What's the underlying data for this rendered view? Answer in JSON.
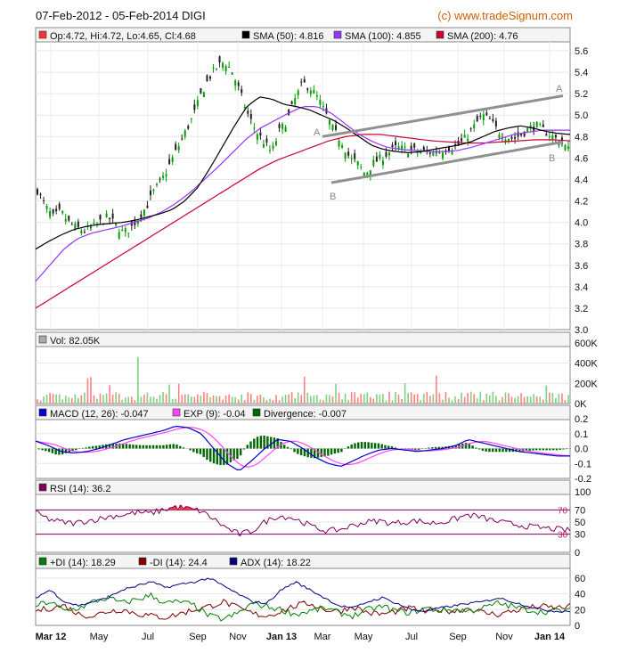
{
  "header": {
    "title": "07-Feb-2012 - 05-Feb-2014 DIGI",
    "brand": "(c) www.tradeSignum.com"
  },
  "colors": {
    "price_up": "#00a000",
    "price_down": "#202020",
    "sma50": "#000000",
    "sma100": "#9933ff",
    "sma200": "#cc0033",
    "channel": "#909090",
    "vol_up": "#ff8080",
    "vol_down": "#80d080",
    "macd": "#0000cc",
    "exp": "#ff44ff",
    "divergence": "#006600",
    "rsi": "#800060",
    "rsi_fill": "#ff3030",
    "rsi_fill_low": "#6a2cff",
    "pdi": "#008000",
    "mdi": "#800000",
    "adx": "#000080"
  },
  "chart_data": [
    {
      "type": "line",
      "panel": "price",
      "legend": [
        {
          "label": "Op:4.72, Hi:4.72, Lo:4.65, Cl:4.68",
          "color": "#ff3030"
        },
        {
          "label": "SMA (50): 4.816",
          "color": "#000000"
        },
        {
          "label": "SMA (100): 4.855",
          "color": "#9933ff"
        },
        {
          "label": "SMA (200): 4.76",
          "color": "#cc0033"
        }
      ],
      "yticks": [
        "5.6",
        "5.4",
        "5.2",
        "5.0",
        "4.8",
        "4.6",
        "4.4",
        "4.2",
        "4.0",
        "3.8",
        "3.6",
        "3.4",
        "3.2",
        "3.0"
      ],
      "ylim": [
        3.0,
        5.6
      ],
      "x_months": [
        "Mar 12",
        "May",
        "Jul",
        "Sep",
        "Nov",
        "Jan 13",
        "Mar",
        "May",
        "Jul",
        "Sep",
        "Nov",
        "Jan 14"
      ],
      "annotations": [
        "A",
        "A",
        "B",
        "B"
      ],
      "price": [
        4.3,
        4.15,
        4.05,
        4.1,
        4.0,
        3.95,
        3.92,
        3.95,
        4.0,
        4.05,
        3.98,
        3.9,
        3.95,
        4.05,
        4.15,
        4.3,
        4.4,
        4.55,
        4.7,
        4.85,
        5.0,
        5.2,
        5.35,
        5.45,
        5.5,
        5.4,
        5.2,
        5.0,
        4.85,
        4.75,
        4.65,
        4.85,
        4.95,
        5.15,
        5.3,
        5.25,
        5.15,
        5.0,
        4.85,
        4.75,
        4.6,
        4.55,
        4.45,
        4.55,
        4.6,
        4.65,
        4.7,
        4.68,
        4.67,
        4.66,
        4.65,
        4.66,
        4.68,
        4.7,
        4.72,
        4.8,
        4.9,
        5.0,
        4.95,
        4.85,
        4.8,
        4.78,
        4.82,
        4.88,
        4.9,
        4.85,
        4.8,
        4.75,
        4.68
      ],
      "sma50": [
        3.75,
        3.82,
        3.88,
        3.93,
        3.96,
        3.98,
        3.99,
        4.0,
        4.02,
        4.05,
        4.08,
        4.12,
        4.2,
        4.32,
        4.5,
        4.7,
        4.9,
        5.08,
        5.17,
        5.15,
        5.1,
        5.08,
        5.05,
        5.0,
        4.95,
        4.88,
        4.8,
        4.72,
        4.68,
        4.66,
        4.65,
        4.66,
        4.68,
        4.7,
        4.72,
        4.75,
        4.8,
        4.85,
        4.88,
        4.9,
        4.88,
        4.85,
        4.83,
        4.82
      ],
      "sma100": [
        3.45,
        3.6,
        3.75,
        3.85,
        3.9,
        3.93,
        3.96,
        4.0,
        4.04,
        4.1,
        4.18,
        4.28,
        4.4,
        4.52,
        4.65,
        4.78,
        4.88,
        4.95,
        5.02,
        5.08,
        5.08,
        5.02,
        4.92,
        4.82,
        4.75,
        4.7,
        4.68,
        4.67,
        4.66,
        4.66,
        4.67,
        4.7,
        4.74,
        4.78,
        4.82,
        4.84,
        4.86,
        4.86,
        4.86
      ],
      "sma200": [
        3.2,
        3.3,
        3.4,
        3.5,
        3.6,
        3.7,
        3.8,
        3.9,
        4.0,
        4.1,
        4.2,
        4.3,
        4.4,
        4.5,
        4.58,
        4.64,
        4.7,
        4.76,
        4.8,
        4.82,
        4.82,
        4.8,
        4.78,
        4.76,
        4.75,
        4.74,
        4.74,
        4.75,
        4.76,
        4.77,
        4.77,
        4.76
      ]
    },
    {
      "type": "bar",
      "panel": "volume",
      "legend": [
        {
          "label": "Vol: 82.05K",
          "color": "#aaaaaa"
        }
      ],
      "yticks": [
        "600K",
        "400K",
        "200K",
        "0K"
      ],
      "ylim": [
        0,
        600
      ]
    },
    {
      "type": "line",
      "panel": "macd",
      "legend": [
        {
          "label": "MACD (12, 26): -0.047",
          "color": "#0000cc"
        },
        {
          "label": "EXP (9): -0.04",
          "color": "#ff44ff"
        },
        {
          "label": "Divergence: -0.007",
          "color": "#006600"
        }
      ],
      "yticks": [
        "0.2",
        "0.1",
        "0.0",
        "-0.1",
        "-0.2"
      ],
      "ylim": [
        -0.2,
        0.2
      ],
      "macd": [
        0.05,
        0.02,
        -0.02,
        -0.03,
        -0.02,
        0.0,
        0.03,
        0.06,
        0.08,
        0.1,
        0.12,
        0.15,
        0.14,
        0.1,
        0.0,
        -0.1,
        -0.15,
        -0.08,
        0.0,
        0.06,
        0.05,
        0.0,
        -0.06,
        -0.1,
        -0.12,
        -0.08,
        -0.04,
        -0.01,
        0.0,
        -0.01,
        -0.02,
        -0.01,
        0.0,
        0.02,
        0.06,
        0.04,
        0.02,
        0.0,
        -0.02,
        -0.03,
        -0.04,
        -0.05,
        -0.05
      ]
    },
    {
      "type": "line",
      "panel": "rsi",
      "legend": [
        {
          "label": "RSI (14): 36.2",
          "color": "#800060"
        }
      ],
      "yticks": [
        "100",
        "70",
        "50",
        "30",
        "0"
      ],
      "ylim": [
        0,
        100
      ],
      "levels": [
        70,
        30
      ],
      "level_labels": [
        "70",
        "30"
      ],
      "rsi": [
        65,
        55,
        50,
        48,
        52,
        55,
        60,
        62,
        66,
        64,
        70,
        75,
        72,
        68,
        55,
        40,
        30,
        35,
        50,
        60,
        58,
        50,
        40,
        35,
        38,
        45,
        50,
        52,
        48,
        50,
        52,
        48,
        50,
        55,
        62,
        58,
        52,
        48,
        45,
        42,
        40,
        38,
        36
      ]
    },
    {
      "type": "line",
      "panel": "dmi",
      "legend": [
        {
          "label": "+DI (14): 18.29",
          "color": "#008000"
        },
        {
          "label": "-DI (14): 24.4",
          "color": "#800000"
        },
        {
          "label": "ADX (14): 18.22",
          "color": "#000080"
        }
      ],
      "yticks": [
        "60",
        "40",
        "20",
        "0"
      ],
      "ylim": [
        0,
        70
      ],
      "pdi": [
        25,
        30,
        18,
        22,
        30,
        35,
        28,
        33,
        38,
        28,
        30,
        25,
        12,
        8,
        15,
        28,
        24,
        20,
        14,
        18,
        22,
        16,
        12,
        20,
        24,
        18,
        16,
        22,
        19,
        20,
        18,
        22,
        28,
        24,
        20,
        17,
        19,
        18
      ],
      "mdi": [
        18,
        22,
        25,
        14,
        12,
        18,
        20,
        15,
        12,
        10,
        15,
        20,
        24,
        30,
        22,
        15,
        12,
        18,
        25,
        28,
        20,
        18,
        24,
        16,
        14,
        18,
        22,
        17,
        20,
        18,
        22,
        16,
        14,
        18,
        22,
        24,
        22,
        24
      ],
      "adx": [
        35,
        45,
        30,
        25,
        30,
        35,
        45,
        50,
        55,
        48,
        52,
        55,
        60,
        50,
        40,
        30,
        28,
        45,
        55,
        45,
        35,
        25,
        22,
        30,
        35,
        28,
        20,
        18,
        22,
        25,
        28,
        30,
        35,
        30,
        25,
        20,
        18,
        18
      ]
    }
  ]
}
